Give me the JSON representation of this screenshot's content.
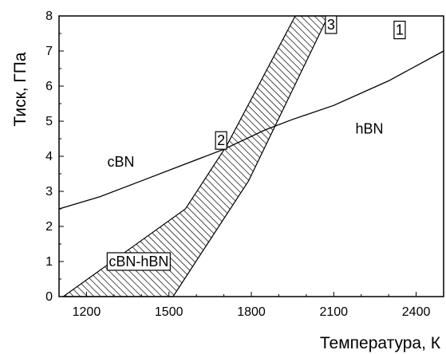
{
  "chart_data": {
    "type": "line",
    "title": "",
    "xlabel": "Температура, К",
    "ylabel": "Тиск, ГПа",
    "xlim": [
      1100,
      2500
    ],
    "ylim": [
      0,
      8
    ],
    "x_ticks": [
      "1200",
      "1500",
      "1800",
      "2100",
      "2400"
    ],
    "y_ticks": [
      "0",
      "1",
      "2",
      "3",
      "4",
      "5",
      "6",
      "7",
      "8"
    ],
    "grid": false,
    "series": [
      {
        "style": "line",
        "points": [
          [
            1100,
            2.5
          ],
          [
            1250,
            2.85
          ],
          [
            1400,
            3.3
          ],
          [
            1550,
            3.75
          ],
          [
            1700,
            4.2
          ],
          [
            1850,
            4.75
          ],
          [
            1950,
            5.05
          ],
          [
            2100,
            5.45
          ],
          [
            2300,
            6.15
          ],
          [
            2500,
            7.0
          ]
        ]
      }
    ],
    "hatched_band": {
      "polygon": [
        [
          1115,
          0
        ],
        [
          1515,
          0
        ],
        [
          1640,
          1.5
        ],
        [
          1790,
          3.3
        ],
        [
          2080,
          8.0
        ],
        [
          1960,
          8.0
        ],
        [
          1710,
          4.3
        ],
        [
          1560,
          2.5
        ]
      ]
    },
    "region_labels": [
      {
        "text": "cBN",
        "x": 1325,
        "y": 3.7
      },
      {
        "text": "hBN",
        "x": 2230,
        "y": 4.65
      }
    ],
    "boxed_labels": [
      {
        "text": "1",
        "x": 2340,
        "y": 7.6
      },
      {
        "text": "2",
        "x": 1690,
        "y": 4.45
      },
      {
        "text": "3",
        "x": 2090,
        "y": 7.75
      },
      {
        "text": "cBN-hBN",
        "x": 1390,
        "y": 1.0
      }
    ]
  }
}
